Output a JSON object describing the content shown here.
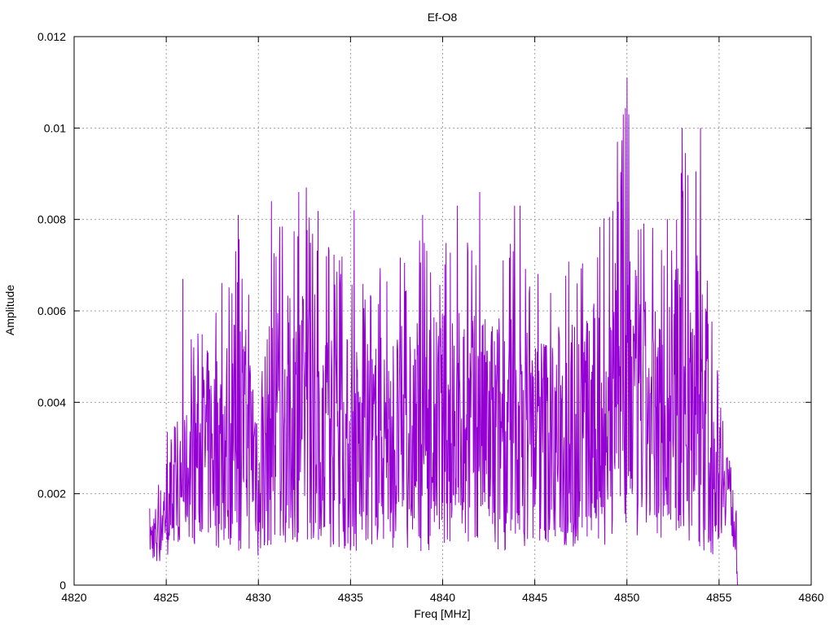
{
  "chart_data": {
    "type": "line",
    "title": "Ef-O8",
    "xlabel": "Freq [MHz]",
    "ylabel": "Amplitude",
    "xlim": [
      4820,
      4860
    ],
    "ylim": [
      0,
      0.012
    ],
    "xticks": [
      4820,
      4825,
      4830,
      4835,
      4840,
      4845,
      4850,
      4855,
      4860
    ],
    "yticks": [
      0,
      0.002,
      0.004,
      0.006,
      0.008,
      0.01,
      0.012
    ],
    "xtick_labels": [
      "4820",
      "4825",
      "4830",
      "4835",
      "4840",
      "4845",
      "4850",
      "4855",
      "4860"
    ],
    "ytick_labels": [
      "0",
      "0.002",
      "0.004",
      "0.006",
      "0.008",
      "0.01",
      "0.012"
    ],
    "grid": true,
    "legend": "none",
    "series": [
      {
        "color": "#9400d3",
        "x_start": 4824.1,
        "x_end": 4856.0,
        "envelope": {
          "x": [
            4824.1,
            4824.6,
            4825.0,
            4825.5,
            4826.0,
            4826.5,
            4827.0,
            4828.0,
            4829.0,
            4830.0,
            4831.0,
            4832.0,
            4833.0,
            4834.0,
            4835.0,
            4836.0,
            4837.0,
            4838.0,
            4839.0,
            4840.0,
            4841.0,
            4842.0,
            4843.0,
            4844.0,
            4845.0,
            4846.0,
            4847.0,
            4848.0,
            4849.0,
            4850.0,
            4850.6,
            4851.0,
            4852.0,
            4853.0,
            4854.0,
            4854.5,
            4855.0,
            4855.5,
            4855.9,
            4856.0
          ],
          "high": [
            0.0017,
            0.0025,
            0.0037,
            0.0035,
            0.0045,
            0.006,
            0.0065,
            0.007,
            0.0078,
            0.0065,
            0.008,
            0.0082,
            0.0084,
            0.0078,
            0.007,
            0.0068,
            0.0072,
            0.0074,
            0.0078,
            0.0077,
            0.0079,
            0.0075,
            0.0078,
            0.0075,
            0.0072,
            0.0073,
            0.0076,
            0.0078,
            0.0085,
            0.011,
            0.0085,
            0.008,
            0.0078,
            0.0095,
            0.0098,
            0.007,
            0.0058,
            0.0038,
            0.002,
            0.001
          ],
          "low": [
            0.0006,
            0.0004,
            0.0006,
            0.0008,
            0.001,
            0.0009,
            0.0008,
            0.0007,
            0.0007,
            0.0006,
            0.0008,
            0.0009,
            0.0009,
            0.0008,
            0.0006,
            0.0008,
            0.0008,
            0.0007,
            0.0007,
            0.0008,
            0.0009,
            0.0008,
            0.0007,
            0.0008,
            0.0008,
            0.0008,
            0.0007,
            0.0008,
            0.0009,
            0.0008,
            0.0007,
            0.0009,
            0.001,
            0.0009,
            0.0008,
            0.0005,
            0.001,
            0.0014,
            0.0005,
            0.0
          ]
        },
        "peaks": [
          {
            "x": 4825.9,
            "y": 0.0067
          },
          {
            "x": 4828.9,
            "y": 0.0081
          },
          {
            "x": 4830.7,
            "y": 0.0084
          },
          {
            "x": 4832.2,
            "y": 0.0086
          },
          {
            "x": 4832.6,
            "y": 0.0087
          },
          {
            "x": 4835.2,
            "y": 0.0082
          },
          {
            "x": 4838.9,
            "y": 0.0081
          },
          {
            "x": 4840.8,
            "y": 0.0083
          },
          {
            "x": 4842.0,
            "y": 0.0086
          },
          {
            "x": 4843.9,
            "y": 0.0083
          },
          {
            "x": 4844.2,
            "y": 0.0083
          },
          {
            "x": 4849.7,
            "y": 0.0086
          },
          {
            "x": 4850.0,
            "y": 0.0111
          },
          {
            "x": 4850.1,
            "y": 0.0103
          },
          {
            "x": 4853.0,
            "y": 0.01
          },
          {
            "x": 4854.0,
            "y": 0.01
          }
        ]
      }
    ]
  }
}
